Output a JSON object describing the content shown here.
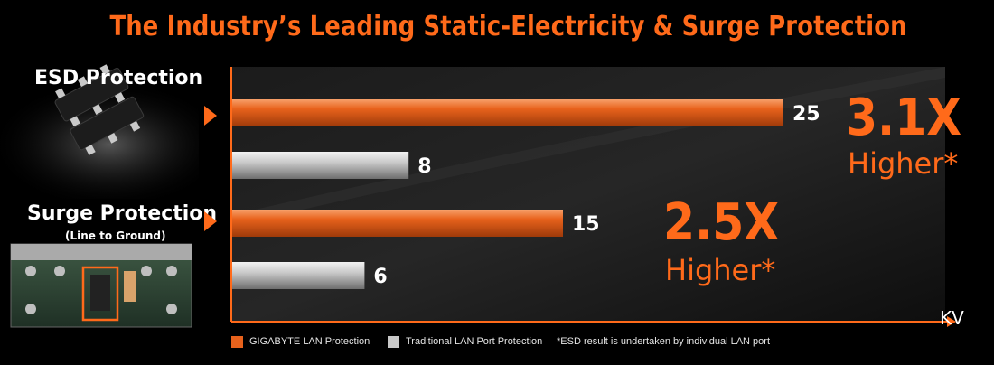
{
  "title": "The Industry’s Leading Static-Electricity & Surge Protection",
  "left_labels": {
    "esd": "ESD Protection",
    "surge": "Surge Protection",
    "surge_sub": "(Line to Ground)"
  },
  "highlights": {
    "esd": {
      "ratio": "3.1X",
      "word": "Higher*"
    },
    "surge": {
      "ratio": "2.5X",
      "word": "Higher*"
    }
  },
  "unit": "KV",
  "legend": {
    "gigabyte": "GIGABYTE LAN Protection",
    "traditional": "Traditional LAN Port Protection",
    "footnote": "*ESD result is undertaken by individual LAN port"
  },
  "colors": {
    "accent": "#ff6a1a",
    "gigabyte_bar": "#e8621c",
    "traditional_bar": "#c8c8c8",
    "background": "#000000"
  },
  "chart_data": {
    "type": "bar",
    "orientation": "horizontal",
    "title": "The Industry’s Leading Static-Electricity & Surge Protection",
    "categories": [
      "ESD Protection",
      "Surge Protection"
    ],
    "series": [
      {
        "name": "GIGABYTE LAN Protection",
        "values": [
          25,
          15
        ]
      },
      {
        "name": "Traditional LAN Port Protection",
        "values": [
          8,
          6
        ]
      }
    ],
    "xlabel": "KV",
    "xlim": [
      0,
      32
    ],
    "grid": false,
    "legend_position": "bottom"
  }
}
